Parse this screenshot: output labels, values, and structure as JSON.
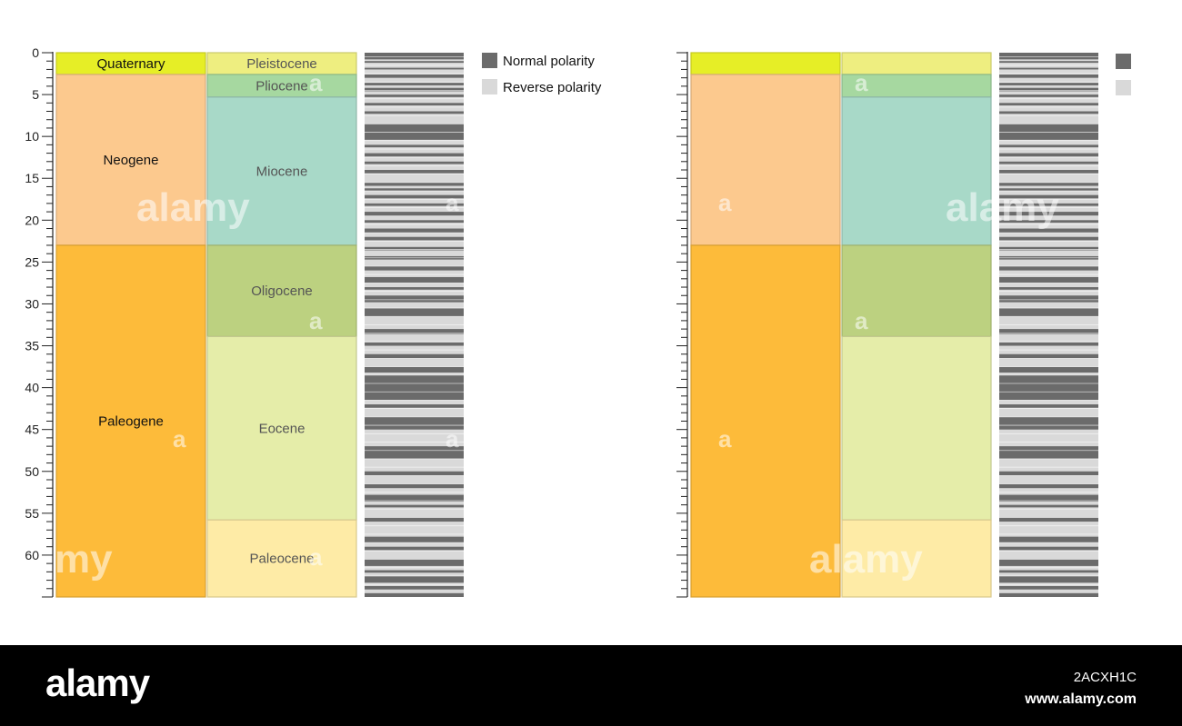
{
  "diagram": {
    "age_axis": {
      "min": 0,
      "max": 65,
      "tick_labels": [
        "0",
        "5",
        "10",
        "15",
        "20",
        "25",
        "30",
        "35",
        "40",
        "45",
        "50",
        "55",
        "60"
      ]
    },
    "periods": [
      {
        "name": "Quaternary",
        "start": 0,
        "end": 2.6,
        "color": "#e6ee26"
      },
      {
        "name": "Neogene",
        "start": 2.6,
        "end": 23,
        "color": "#fcc98e"
      },
      {
        "name": "Paleogene",
        "start": 23,
        "end": 65,
        "color": "#fdbb3a"
      }
    ],
    "epochs": [
      {
        "name": "Pleistocene",
        "start": 0,
        "end": 2.6,
        "color": "#eeee80"
      },
      {
        "name": "Pliocene",
        "start": 2.6,
        "end": 5.3,
        "color": "#a6d8a0"
      },
      {
        "name": "Miocene",
        "start": 5.3,
        "end": 23,
        "color": "#a8d9c8"
      },
      {
        "name": "Oligocene",
        "start": 23,
        "end": 33.9,
        "color": "#bcd180"
      },
      {
        "name": "Eocene",
        "start": 33.9,
        "end": 55.8,
        "color": "#e5eda9"
      },
      {
        "name": "Paleocene",
        "start": 55.8,
        "end": 65,
        "color": "#feeba6"
      }
    ],
    "polarity": {
      "normal_color": "#6b6b6b",
      "reverse_color": "#d9d9d9",
      "normal_intervals": [
        [
          0.0,
          0.8
        ],
        [
          1.0,
          1.2
        ],
        [
          1.8,
          2.0
        ],
        [
          2.6,
          3.0
        ],
        [
          3.6,
          3.9
        ],
        [
          4.2,
          4.6
        ],
        [
          5.0,
          5.3
        ],
        [
          6.0,
          6.3
        ],
        [
          7.0,
          7.3
        ],
        [
          8.5,
          10.4
        ],
        [
          11.0,
          11.3
        ],
        [
          12.0,
          12.4
        ],
        [
          13.0,
          13.3
        ],
        [
          14.0,
          14.4
        ],
        [
          15.5,
          15.9
        ],
        [
          16.2,
          16.5
        ],
        [
          17.0,
          17.4
        ],
        [
          18.0,
          18.3
        ],
        [
          19.0,
          19.5
        ],
        [
          20.0,
          20.3
        ],
        [
          21.0,
          21.5
        ],
        [
          22.0,
          22.4
        ],
        [
          23.2,
          23.6
        ],
        [
          24.3,
          24.7
        ],
        [
          25.5,
          26.0
        ],
        [
          26.8,
          27.5
        ],
        [
          28.0,
          28.3
        ],
        [
          29.0,
          29.8
        ],
        [
          30.5,
          31.5
        ],
        [
          33.0,
          33.6
        ],
        [
          34.6,
          35.0
        ],
        [
          36.0,
          36.5
        ],
        [
          37.5,
          38.2
        ],
        [
          38.5,
          41.5
        ],
        [
          42.0,
          42.4
        ],
        [
          43.5,
          45.0
        ],
        [
          47.0,
          48.5
        ],
        [
          50.0,
          50.5
        ],
        [
          51.5,
          52.0
        ],
        [
          52.8,
          53.6
        ],
        [
          54.0,
          54.3
        ],
        [
          55.5,
          56.0
        ],
        [
          57.8,
          58.5
        ],
        [
          59.0,
          59.4
        ],
        [
          60.5,
          61.3
        ],
        [
          61.8,
          62.1
        ],
        [
          62.5,
          63.3
        ],
        [
          63.7,
          64.1
        ],
        [
          64.5,
          65.0
        ]
      ]
    },
    "legend": {
      "normal_label": "Normal polarity",
      "reverse_label": "Reverse polarity"
    }
  },
  "footer": {
    "logo": "alamy",
    "image_id": "2ACXH1C",
    "url": "www.alamy.com"
  }
}
